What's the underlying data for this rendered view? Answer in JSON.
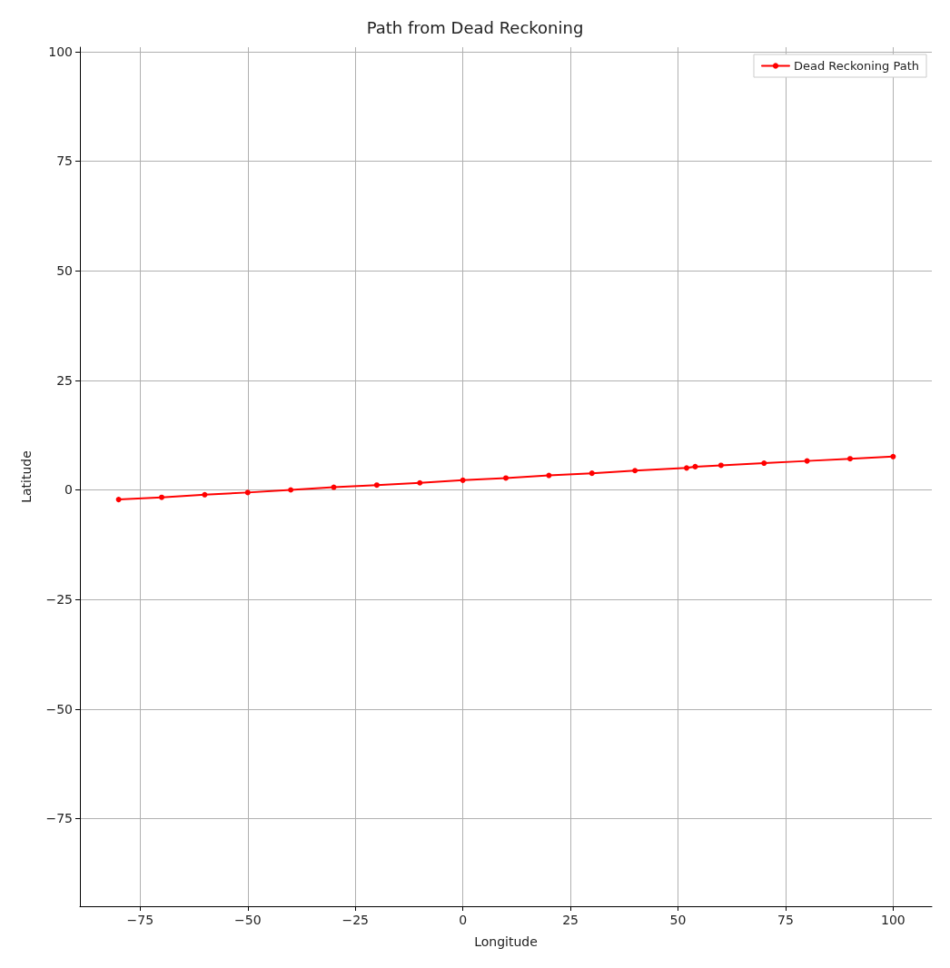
{
  "chart_data": {
    "type": "line",
    "title": "Path from Dead Reckoning",
    "xlabel": "Longitude",
    "ylabel": "Latitude",
    "xlim": [
      -89,
      109
    ],
    "xticks": [
      -75,
      -50,
      -25,
      0,
      25,
      50,
      75,
      100
    ],
    "ylim": [
      -95,
      101
    ],
    "yticks": [
      -75,
      -50,
      -25,
      0,
      25,
      50,
      75,
      100
    ],
    "grid": true,
    "legend": "top right",
    "marker": "circle",
    "line_style": "solid",
    "series": [
      {
        "name": "Dead Reckoning Path",
        "color": "#ff0000",
        "x": [
          -80,
          -70,
          -60,
          -50,
          -40,
          -30,
          -20,
          -10,
          0,
          10,
          20,
          30,
          40,
          52,
          54,
          60,
          70,
          80,
          90,
          100
        ],
        "values": [
          -2.2,
          -1.7,
          -1.1,
          -0.6,
          0.0,
          0.6,
          1.1,
          1.6,
          2.2,
          2.7,
          3.3,
          3.8,
          4.4,
          5.0,
          5.3,
          5.6,
          6.1,
          6.6,
          7.1,
          7.6
        ]
      }
    ]
  }
}
